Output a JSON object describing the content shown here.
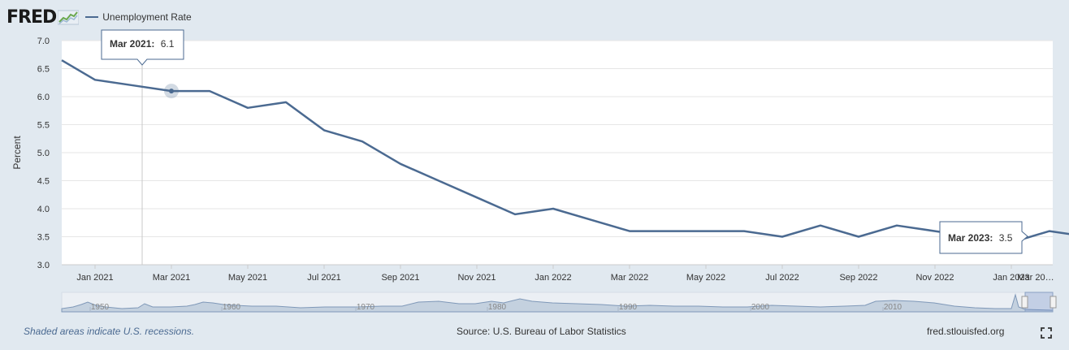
{
  "header": {
    "logo_text": "FRED",
    "logo_icon": "line-graph-icon",
    "legend_label": "Unemployment Rate"
  },
  "colors": {
    "series": "#4b6a91",
    "plot_bg": "#ffffff",
    "page_bg": "#e1e9f0",
    "navigator_fill": "#c4d1df",
    "footer_note": "#4b6a91"
  },
  "chart_data": {
    "type": "line",
    "ylabel": "Percent",
    "ylim": [
      3.0,
      7.0
    ],
    "yticks": [
      "3.0",
      "3.5",
      "4.0",
      "4.5",
      "5.0",
      "5.5",
      "6.0",
      "6.5",
      "7.0"
    ],
    "xticks": [
      "Jan 2021",
      "Mar 2021",
      "May 2021",
      "Jul 2021",
      "Sep 2021",
      "Nov 2021",
      "Jan 2022",
      "Mar 2022",
      "May 2022",
      "Jul 2022",
      "Sep 2022",
      "Nov 2022",
      "Jan 2023",
      "Mar 20…"
    ],
    "grid": true,
    "series": [
      {
        "name": "Unemployment Rate",
        "x": [
          "2020-12",
          "2021-01",
          "2021-02",
          "2021-03",
          "2021-04",
          "2021-05",
          "2021-06",
          "2021-07",
          "2021-08",
          "2021-09",
          "2021-10",
          "2021-11",
          "2021-12",
          "2022-01",
          "2022-02",
          "2022-03",
          "2022-04",
          "2022-05",
          "2022-06",
          "2022-07",
          "2022-08",
          "2022-09",
          "2022-10",
          "2022-11",
          "2022-12",
          "2023-01",
          "2023-02",
          "2023-03"
        ],
        "values": [
          6.7,
          6.3,
          6.2,
          6.1,
          6.1,
          5.8,
          5.9,
          5.4,
          5.2,
          4.8,
          4.5,
          4.2,
          3.9,
          4.0,
          3.8,
          3.6,
          3.6,
          3.6,
          3.6,
          3.5,
          3.7,
          3.5,
          3.7,
          3.6,
          3.5,
          3.4,
          3.6,
          3.5
        ]
      }
    ],
    "tooltips": [
      {
        "date_label": "Mar 2021:",
        "value_label": "6.1"
      },
      {
        "date_label": "Mar 2023:",
        "value_label": "3.5"
      }
    ],
    "navigator": {
      "ticks": [
        "1950",
        "1960",
        "1970",
        "1980",
        "1990",
        "2000",
        "2010"
      ]
    }
  },
  "footer": {
    "note": "Shaded areas indicate U.S. recessions.",
    "source": "Source: U.S. Bureau of Labor Statistics",
    "site": "fred.stlouisfed.org",
    "fullscreen_icon": "fullscreen-icon"
  }
}
